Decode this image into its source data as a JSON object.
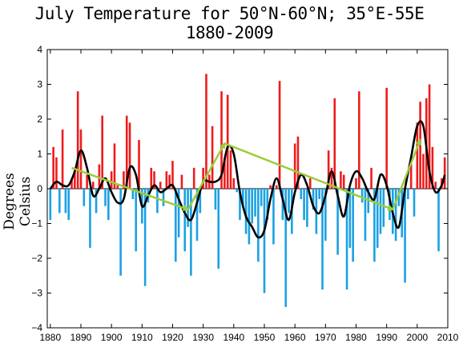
{
  "chart_data": {
    "type": "bar",
    "title": "July Temperature for 50°N-60°N; 35°E-55E",
    "subtitle": "1880-2009",
    "xlabel": "",
    "ylabel": "Degrees Celsius",
    "xlim": [
      1879,
      2010
    ],
    "ylim": [
      -4,
      4
    ],
    "xticks": [
      1880,
      1890,
      1900,
      1910,
      1920,
      1930,
      1940,
      1950,
      1960,
      1970,
      1980,
      1990,
      2000,
      2010
    ],
    "yticks": [
      -4,
      -3,
      -2,
      -1,
      0,
      1,
      2,
      3,
      4
    ],
    "grid": false,
    "positive_color": "#ee1c1c",
    "negative_color": "#1ba1e2",
    "smooth_color": "#000000",
    "trend_color": "#9ccc3c",
    "series": [
      {
        "type": "bar",
        "x": [
          1880,
          1881,
          1882,
          1883,
          1884,
          1885,
          1886,
          1887,
          1888,
          1889,
          1890,
          1891,
          1892,
          1893,
          1894,
          1895,
          1896,
          1897,
          1898,
          1899,
          1900,
          1901,
          1902,
          1903,
          1904,
          1905,
          1906,
          1907,
          1908,
          1909,
          1910,
          1911,
          1912,
          1913,
          1914,
          1915,
          1916,
          1917,
          1918,
          1919,
          1920,
          1921,
          1922,
          1923,
          1924,
          1925,
          1926,
          1927,
          1928,
          1929,
          1930,
          1931,
          1932,
          1933,
          1934,
          1935,
          1936,
          1937,
          1938,
          1939,
          1940,
          1941,
          1942,
          1943,
          1944,
          1945,
          1946,
          1947,
          1948,
          1949,
          1950,
          1951,
          1952,
          1953,
          1954,
          1955,
          1956,
          1957,
          1958,
          1959,
          1960,
          1961,
          1962,
          1963,
          1964,
          1965,
          1966,
          1967,
          1968,
          1969,
          1970,
          1971,
          1972,
          1973,
          1974,
          1975,
          1976,
          1977,
          1978,
          1979,
          1980,
          1981,
          1982,
          1983,
          1984,
          1985,
          1986,
          1987,
          1988,
          1989,
          1990,
          1991,
          1992,
          1993,
          1994,
          1995,
          1996,
          1997,
          1998,
          1999,
          2000,
          2001,
          2002,
          2003,
          2004,
          2005,
          2006,
          2007,
          2008,
          2009
        ],
        "values": [
          -0.9,
          1.2,
          0.9,
          -0.7,
          1.7,
          -0.7,
          -0.9,
          0.3,
          0.6,
          2.8,
          1.7,
          -0.5,
          0.4,
          -1.7,
          0.2,
          -0.7,
          0.7,
          2.1,
          -0.5,
          -0.9,
          0.5,
          1.3,
          0.1,
          -2.5,
          0.5,
          2.1,
          1.9,
          -0.3,
          -1.8,
          1.4,
          -1.0,
          -2.8,
          -0.4,
          0.6,
          0.5,
          -0.7,
          0.2,
          -0.5,
          0.5,
          0.4,
          0.8,
          -2.1,
          -1.4,
          0.4,
          -1.8,
          -1.1,
          -2.5,
          0.6,
          -1.5,
          -0.7,
          0.6,
          3.3,
          0.4,
          1.8,
          -0.6,
          -2.3,
          2.8,
          0.9,
          2.7,
          1.1,
          0.3,
          -0.1,
          -0.9,
          -0.5,
          -1.3,
          -1.6,
          -1.0,
          -0.8,
          -2.1,
          -0.5,
          -3.0,
          -0.9,
          0.1,
          -1.6,
          0.1,
          3.1,
          -0.9,
          -3.4,
          -0.7,
          -1.3,
          1.3,
          1.5,
          -0.3,
          -0.9,
          -1.1,
          0.3,
          -0.6,
          -1.3,
          -0.3,
          -2.9,
          -1.5,
          1.1,
          0.6,
          2.6,
          -1.9,
          0.5,
          0.4,
          -2.9,
          -1.7,
          -2.1,
          0.3,
          2.8,
          -0.4,
          -1.5,
          -0.7,
          0.6,
          -2.1,
          -1.7,
          -1.3,
          -1.1,
          2.9,
          -0.9,
          -1.3,
          -1.5,
          -0.5,
          -1.4,
          -2.7,
          -0.3,
          0.7,
          -0.8,
          1.9,
          2.5,
          1.0,
          2.6,
          3.0,
          1.2,
          0.2,
          -1.8,
          0.3,
          0.9
        ]
      },
      {
        "type": "line",
        "name": "",
        "x": [
          1880,
          1882,
          1884,
          1886,
          1888,
          1890,
          1892,
          1894,
          1896,
          1898,
          1900,
          1902,
          1904,
          1906,
          1908,
          1910,
          1912,
          1914,
          1916,
          1918,
          1920,
          1922,
          1924,
          1926,
          1928,
          1930,
          1932,
          1934,
          1936,
          1938,
          1940,
          1942,
          1944,
          1946,
          1948,
          1950,
          1952,
          1954,
          1956,
          1958,
          1960,
          1962,
          1964,
          1966,
          1968,
          1970,
          1972,
          1974,
          1976,
          1978,
          1980,
          1982,
          1984,
          1986,
          1988,
          1990,
          1992,
          1994,
          1996,
          1998,
          2000,
          2002,
          2004,
          2006,
          2008,
          2009
        ],
        "values": [
          0.0,
          0.2,
          0.1,
          0.1,
          0.5,
          1.1,
          0.6,
          -0.2,
          0.0,
          0.3,
          -0.1,
          -0.4,
          -0.3,
          0.6,
          0.4,
          -0.5,
          -0.2,
          0.1,
          -0.1,
          0.0,
          0.1,
          -0.3,
          -0.7,
          -0.9,
          -0.4,
          0.2,
          0.2,
          0.2,
          0.4,
          1.2,
          1.0,
          -0.1,
          -0.8,
          -1.1,
          -1.4,
          -1.2,
          -0.3,
          0.3,
          -0.3,
          -0.9,
          -0.1,
          0.4,
          0.1,
          -0.5,
          -0.7,
          -0.2,
          0.5,
          -0.2,
          -0.8,
          0.1,
          0.5,
          0.3,
          -0.1,
          -0.3,
          0.4,
          0.1,
          -0.7,
          -1.1,
          0.0,
          0.9,
          1.8,
          1.8,
          0.5,
          -0.1,
          0.1,
          0.4
        ]
      },
      {
        "type": "line",
        "name": "",
        "x": [
          1887,
          1925,
          1937,
          1992,
          2001
        ],
        "values": [
          0.6,
          -0.6,
          1.3,
          -0.6,
          1.4
        ]
      }
    ]
  }
}
